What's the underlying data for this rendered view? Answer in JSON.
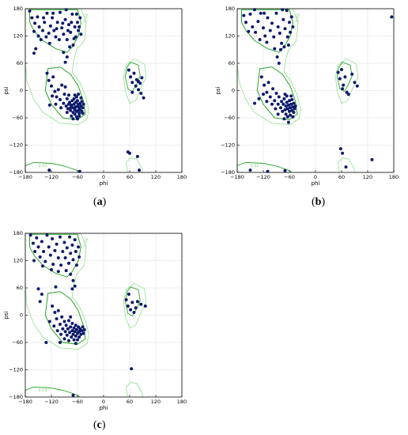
{
  "panel_labels": [
    {
      "pre": "(",
      "letter": "a",
      "post": ")"
    },
    {
      "pre": "(",
      "letter": "b",
      "post": ")"
    },
    {
      "pre": "(",
      "letter": "c",
      "post": ")"
    }
  ],
  "colors": {
    "points": "#0d1a6b",
    "contour_inner": "#2aa52a",
    "contour_outer": "#8ee08e",
    "grid": "#bbbbbb"
  },
  "chart_data": [
    {
      "type": "scatter",
      "panel": "a",
      "xlabel": "phi",
      "ylabel": "psi",
      "xlim": [
        -180,
        180
      ],
      "ylim": [
        -180,
        180
      ],
      "xticks": [
        "−180",
        "−120",
        "−60",
        "0",
        "60",
        "120",
        "180"
      ],
      "yticks": [
        "180",
        "120",
        "60",
        "0",
        "−60",
        "−120",
        "−180"
      ],
      "grid": true,
      "contour_labels": [
        "0.02",
        "0.02"
      ],
      "points": [
        [
          -170,
          175
        ],
        [
          -165,
          160
        ],
        [
          -158,
          148
        ],
        [
          -152,
          162
        ],
        [
          -148,
          140
        ],
        [
          -140,
          132
        ],
        [
          -136,
          150
        ],
        [
          -130,
          170
        ],
        [
          -126,
          126
        ],
        [
          -122,
          142
        ],
        [
          -118,
          160
        ],
        [
          -114,
          132
        ],
        [
          -110,
          118
        ],
        [
          -106,
          150
        ],
        [
          -100,
          172
        ],
        [
          -96,
          138
        ],
        [
          -92,
          124
        ],
        [
          -88,
          156
        ],
        [
          -84,
          112
        ],
        [
          -80,
          145
        ],
        [
          -76,
          128
        ],
        [
          -72,
          168
        ],
        [
          -70,
          100
        ],
        [
          -66,
          140
        ],
        [
          -64,
          118
        ],
        [
          -60,
          150
        ],
        [
          -58,
          132
        ],
        [
          -54,
          160
        ],
        [
          -52,
          124
        ],
        [
          -160,
          130
        ],
        [
          -150,
          120
        ],
        [
          -144,
          112
        ],
        [
          -138,
          160
        ],
        [
          -132,
          118
        ],
        [
          -124,
          104
        ],
        [
          -116,
          170
        ],
        [
          -108,
          136
        ],
        [
          -102,
          112
        ],
        [
          -94,
          148
        ],
        [
          -86,
          178
        ],
        [
          -82,
          132
        ],
        [
          -78,
          96
        ],
        [
          -74,
          150
        ],
        [
          -68,
          114
        ],
        [
          -62,
          168
        ],
        [
          -56,
          140
        ],
        [
          -88,
          62
        ],
        [
          -84,
          74
        ],
        [
          -92,
          84
        ],
        [
          -160,
          82
        ],
        [
          -156,
          92
        ],
        [
          -130,
          38
        ],
        [
          -126,
          22
        ],
        [
          -120,
          10
        ],
        [
          -116,
          30
        ],
        [
          -112,
          -2
        ],
        [
          -108,
          -14
        ],
        [
          -104,
          2
        ],
        [
          -100,
          -20
        ],
        [
          -96,
          12
        ],
        [
          -92,
          -28
        ],
        [
          -88,
          8
        ],
        [
          -86,
          -34
        ],
        [
          -84,
          -18
        ],
        [
          -82,
          -40
        ],
        [
          -80,
          -10
        ],
        [
          -78,
          -26
        ],
        [
          -76,
          -44
        ],
        [
          -74,
          -32
        ],
        [
          -72,
          -22
        ],
        [
          -70,
          -48
        ],
        [
          -70,
          -38
        ],
        [
          -68,
          -30
        ],
        [
          -68,
          -18
        ],
        [
          -66,
          -42
        ],
        [
          -66,
          -52
        ],
        [
          -64,
          -36
        ],
        [
          -64,
          -26
        ],
        [
          -62,
          -46
        ],
        [
          -62,
          -58
        ],
        [
          -60,
          -34
        ],
        [
          -60,
          -22
        ],
        [
          -58,
          -44
        ],
        [
          -58,
          -30
        ],
        [
          -56,
          -50
        ],
        [
          -56,
          -38
        ],
        [
          -54,
          -28
        ],
        [
          -54,
          -42
        ],
        [
          -52,
          -34
        ],
        [
          -50,
          -46
        ],
        [
          -50,
          -24
        ],
        [
          -48,
          -38
        ],
        [
          -46,
          -30
        ],
        [
          -74,
          -56
        ],
        [
          -76,
          -38
        ],
        [
          -80,
          -30
        ],
        [
          -84,
          -48
        ],
        [
          -90,
          -8
        ],
        [
          -98,
          -38
        ],
        [
          -110,
          -30
        ],
        [
          -118,
          -12
        ],
        [
          -124,
          -32
        ],
        [
          -66,
          -10
        ],
        [
          -60,
          -62
        ],
        [
          -56,
          -56
        ],
        [
          -62,
          -14
        ],
        [
          -52,
          -16
        ],
        [
          -48,
          -50
        ],
        [
          -58,
          -8
        ],
        [
          -70,
          -62
        ],
        [
          58,
          45
        ],
        [
          62,
          30
        ],
        [
          66,
          18
        ],
        [
          70,
          38
        ],
        [
          74,
          10
        ],
        [
          76,
          24
        ],
        [
          80,
          2
        ],
        [
          84,
          16
        ],
        [
          86,
          -6
        ],
        [
          88,
          28
        ],
        [
          92,
          -16
        ],
        [
          80,
          20
        ],
        [
          66,
          -4
        ],
        [
          56,
          -135
        ],
        [
          60,
          -138
        ],
        [
          78,
          -145
        ],
        [
          82,
          -175
        ],
        [
          -125,
          -175
        ],
        [
          -55,
          -178
        ]
      ]
    },
    {
      "type": "scatter",
      "panel": "b",
      "xlabel": "phi",
      "ylabel": "psi",
      "xlim": [
        -180,
        180
      ],
      "ylim": [
        -180,
        180
      ],
      "xticks": [
        "−180",
        "−120",
        "−60",
        "0",
        "60",
        "120",
        "180"
      ],
      "yticks": [
        "180",
        "120",
        "60",
        "0",
        "−60",
        "−120",
        "−180"
      ],
      "grid": true,
      "contour_labels": [
        "0.02",
        "0.02"
      ],
      "points": [
        [
          -165,
          165
        ],
        [
          -160,
          150
        ],
        [
          -150,
          168
        ],
        [
          -145,
          140
        ],
        [
          -138,
          128
        ],
        [
          -132,
          152
        ],
        [
          -126,
          170
        ],
        [
          -120,
          138
        ],
        [
          -116,
          120
        ],
        [
          -110,
          160
        ],
        [
          -104,
          132
        ],
        [
          -100,
          148
        ],
        [
          -96,
          118
        ],
        [
          -90,
          170
        ],
        [
          -86,
          140
        ],
        [
          -82,
          126
        ],
        [
          -78,
          104
        ],
        [
          -74,
          156
        ],
        [
          -70,
          136
        ],
        [
          -66,
          176
        ],
        [
          -64,
          118
        ],
        [
          -60,
          150
        ],
        [
          -58,
          128
        ],
        [
          -55,
          162
        ],
        [
          -52,
          140
        ],
        [
          -154,
          130
        ],
        [
          -128,
          112
        ],
        [
          -112,
          106
        ],
        [
          -94,
          92
        ],
        [
          -88,
          74
        ],
        [
          -84,
          60
        ],
        [
          -80,
          90
        ],
        [
          -72,
          96
        ],
        [
          -62,
          100
        ],
        [
          -140,
          178
        ],
        [
          -118,
          170
        ],
        [
          -76,
          178
        ],
        [
          -124,
          30
        ],
        [
          -118,
          12
        ],
        [
          -112,
          -4
        ],
        [
          -108,
          18
        ],
        [
          -104,
          -14
        ],
        [
          -98,
          4
        ],
        [
          -94,
          -22
        ],
        [
          -90,
          -6
        ],
        [
          -86,
          -30
        ],
        [
          -84,
          -14
        ],
        [
          -80,
          -38
        ],
        [
          -78,
          -24
        ],
        [
          -76,
          -46
        ],
        [
          -74,
          -30
        ],
        [
          -72,
          -18
        ],
        [
          -70,
          -42
        ],
        [
          -68,
          -34
        ],
        [
          -68,
          -52
        ],
        [
          -66,
          -26
        ],
        [
          -64,
          -40
        ],
        [
          -64,
          -58
        ],
        [
          -62,
          -32
        ],
        [
          -60,
          -46
        ],
        [
          -60,
          -22
        ],
        [
          -58,
          -38
        ],
        [
          -58,
          -54
        ],
        [
          -56,
          -30
        ],
        [
          -54,
          -44
        ],
        [
          -54,
          -20
        ],
        [
          -52,
          -36
        ],
        [
          -50,
          -48
        ],
        [
          -50,
          -28
        ],
        [
          -48,
          -40
        ],
        [
          -46,
          -34
        ],
        [
          -62,
          -70
        ],
        [
          -66,
          -12
        ],
        [
          -70,
          -8
        ],
        [
          -92,
          -40
        ],
        [
          -100,
          -30
        ],
        [
          -112,
          -24
        ],
        [
          -120,
          -8
        ],
        [
          -130,
          -18
        ],
        [
          -140,
          -28
        ],
        [
          -56,
          -12
        ],
        [
          -72,
          -62
        ],
        [
          -52,
          -58
        ],
        [
          -86,
          -52
        ],
        [
          52,
          40
        ],
        [
          56,
          26
        ],
        [
          60,
          46
        ],
        [
          64,
          12
        ],
        [
          68,
          30
        ],
        [
          72,
          -4
        ],
        [
          76,
          -8
        ],
        [
          84,
          36
        ],
        [
          90,
          18
        ],
        [
          96,
          10
        ],
        [
          62,
          4
        ],
        [
          58,
          -128
        ],
        [
          62,
          -138
        ],
        [
          70,
          -168
        ],
        [
          130,
          -152
        ],
        [
          175,
          162
        ],
        [
          -150,
          -175
        ],
        [
          -110,
          -178
        ],
        [
          -70,
          -176
        ]
      ]
    },
    {
      "type": "scatter",
      "panel": "c",
      "xlabel": "phi",
      "ylabel": "psi",
      "xlim": [
        -180,
        180
      ],
      "ylim": [
        -180,
        180
      ],
      "xticks": [
        "−180",
        "−120",
        "−60",
        "0",
        "60",
        "120",
        "180"
      ],
      "yticks": [
        "180",
        "120",
        "60",
        "0",
        "−60",
        "−120",
        "−180"
      ],
      "grid": true,
      "contour_labels": [
        "0.02",
        "0.02"
      ],
      "points": [
        [
          -168,
          176
        ],
        [
          -162,
          158
        ],
        [
          -158,
          140
        ],
        [
          -154,
          170
        ],
        [
          -150,
          150
        ],
        [
          -146,
          128
        ],
        [
          -142,
          162
        ],
        [
          -138,
          140
        ],
        [
          -134,
          118
        ],
        [
          -130,
          176
        ],
        [
          -126,
          150
        ],
        [
          -122,
          132
        ],
        [
          -118,
          168
        ],
        [
          -116,
          112
        ],
        [
          -112,
          142
        ],
        [
          -108,
          156
        ],
        [
          -104,
          126
        ],
        [
          -100,
          172
        ],
        [
          -98,
          110
        ],
        [
          -94,
          140
        ],
        [
          -90,
          160
        ],
        [
          -88,
          126
        ],
        [
          -84,
          148
        ],
        [
          -80,
          114
        ],
        [
          -78,
          172
        ],
        [
          -76,
          136
        ],
        [
          -72,
          154
        ],
        [
          -70,
          122
        ],
        [
          -66,
          166
        ],
        [
          -64,
          140
        ],
        [
          -62,
          110
        ],
        [
          -58,
          150
        ],
        [
          -56,
          128
        ],
        [
          -160,
          120
        ],
        [
          -140,
          108
        ],
        [
          -120,
          100
        ],
        [
          -104,
          96
        ],
        [
          -86,
          98
        ],
        [
          -76,
          90
        ],
        [
          -70,
          76
        ],
        [
          -66,
          64
        ],
        [
          -72,
          58
        ],
        [
          -110,
          62
        ],
        [
          -150,
          58
        ],
        [
          -142,
          46
        ],
        [
          -146,
          30
        ],
        [
          -118,
          20
        ],
        [
          -112,
          6
        ],
        [
          -108,
          -8
        ],
        [
          -104,
          10
        ],
        [
          -100,
          -20
        ],
        [
          -96,
          -4
        ],
        [
          -94,
          -30
        ],
        [
          -90,
          -14
        ],
        [
          -88,
          -36
        ],
        [
          -86,
          -22
        ],
        [
          -84,
          -44
        ],
        [
          -82,
          -30
        ],
        [
          -80,
          -12
        ],
        [
          -78,
          -38
        ],
        [
          -76,
          -26
        ],
        [
          -74,
          -48
        ],
        [
          -72,
          -34
        ],
        [
          -72,
          -18
        ],
        [
          -70,
          -42
        ],
        [
          -68,
          -28
        ],
        [
          -68,
          -54
        ],
        [
          -66,
          -36
        ],
        [
          -64,
          -22
        ],
        [
          -64,
          -46
        ],
        [
          -62,
          -32
        ],
        [
          -60,
          -40
        ],
        [
          -60,
          -54
        ],
        [
          -58,
          -26
        ],
        [
          -56,
          -36
        ],
        [
          -56,
          -48
        ],
        [
          -54,
          -30
        ],
        [
          -52,
          -42
        ],
        [
          -50,
          -34
        ],
        [
          -48,
          -26
        ],
        [
          -46,
          -40
        ],
        [
          -44,
          -32
        ],
        [
          -80,
          -56
        ],
        [
          -90,
          -52
        ],
        [
          -98,
          -42
        ],
        [
          -106,
          -34
        ],
        [
          -114,
          -24
        ],
        [
          -124,
          -14
        ],
        [
          -132,
          -60
        ],
        [
          -100,
          -60
        ],
        [
          -64,
          -62
        ],
        [
          -76,
          -4
        ],
        [
          52,
          34
        ],
        [
          56,
          20
        ],
        [
          58,
          46
        ],
        [
          62,
          12
        ],
        [
          66,
          28
        ],
        [
          70,
          6
        ],
        [
          74,
          16
        ],
        [
          78,
          30
        ],
        [
          86,
          24
        ],
        [
          96,
          20
        ],
        [
          64,
          -118
        ],
        [
          -70,
          -176
        ]
      ]
    }
  ]
}
